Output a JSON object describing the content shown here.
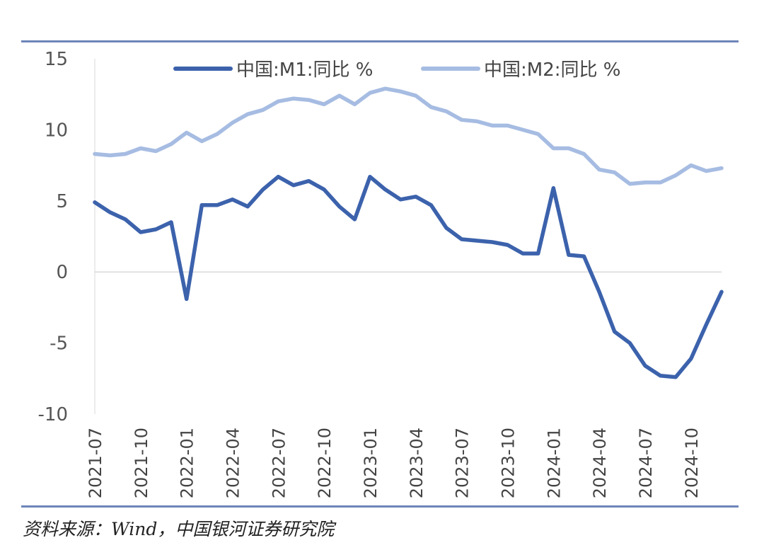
{
  "chart_data": {
    "type": "line",
    "x": [
      "2021-07",
      "2021-08",
      "2021-09",
      "2021-10",
      "2021-11",
      "2021-12",
      "2022-01",
      "2022-02",
      "2022-03",
      "2022-04",
      "2022-05",
      "2022-06",
      "2022-07",
      "2022-08",
      "2022-09",
      "2022-10",
      "2022-11",
      "2022-12",
      "2023-01",
      "2023-02",
      "2023-03",
      "2023-04",
      "2023-05",
      "2023-06",
      "2023-07",
      "2023-08",
      "2023-09",
      "2023-10",
      "2023-11",
      "2023-12",
      "2024-01",
      "2024-02",
      "2024-03",
      "2024-04",
      "2024-05",
      "2024-06",
      "2024-07",
      "2024-08",
      "2024-09",
      "2024-10",
      "2024-11",
      "2024-12"
    ],
    "x_tick_labels": [
      "2021-07",
      "2021-10",
      "2022-01",
      "2022-04",
      "2022-07",
      "2022-10",
      "2023-01",
      "2023-04",
      "2023-07",
      "2023-10",
      "2024-01",
      "2024-04",
      "2024-07",
      "2024-10"
    ],
    "series": [
      {
        "name": "中国:M1:同比 %",
        "color": "#3c62ac",
        "values": [
          4.9,
          4.2,
          3.7,
          2.8,
          3.0,
          3.5,
          -1.9,
          4.7,
          4.7,
          5.1,
          4.6,
          5.8,
          6.7,
          6.1,
          6.4,
          5.8,
          4.6,
          3.7,
          6.7,
          5.8,
          5.1,
          5.3,
          4.7,
          3.1,
          2.3,
          2.2,
          2.1,
          1.9,
          1.3,
          1.3,
          5.9,
          1.2,
          1.1,
          -1.4,
          -4.2,
          -5.0,
          -6.6,
          -7.3,
          -7.4,
          -6.1,
          -3.7,
          -1.4
        ]
      },
      {
        "name": "中国:M2:同比 %",
        "color": "#a6bce2",
        "values": [
          8.3,
          8.2,
          8.3,
          8.7,
          8.5,
          9.0,
          9.8,
          9.2,
          9.7,
          10.5,
          11.1,
          11.4,
          12.0,
          12.2,
          12.1,
          11.8,
          12.4,
          11.8,
          12.6,
          12.9,
          12.7,
          12.4,
          11.6,
          11.3,
          10.7,
          10.6,
          10.3,
          10.3,
          10.0,
          9.7,
          8.7,
          8.7,
          8.3,
          7.2,
          7.0,
          6.2,
          6.3,
          6.3,
          6.8,
          7.5,
          7.1,
          7.3
        ]
      }
    ],
    "ylim": [
      -10,
      15
    ],
    "y_ticks": [
      -10,
      -5,
      0,
      5,
      10,
      15
    ],
    "zero_line": true,
    "grid": false,
    "legend": "top",
    "title": "",
    "xlabel": "",
    "ylabel": ""
  },
  "source": "资料来源：Wind，中国银河证券研究院"
}
